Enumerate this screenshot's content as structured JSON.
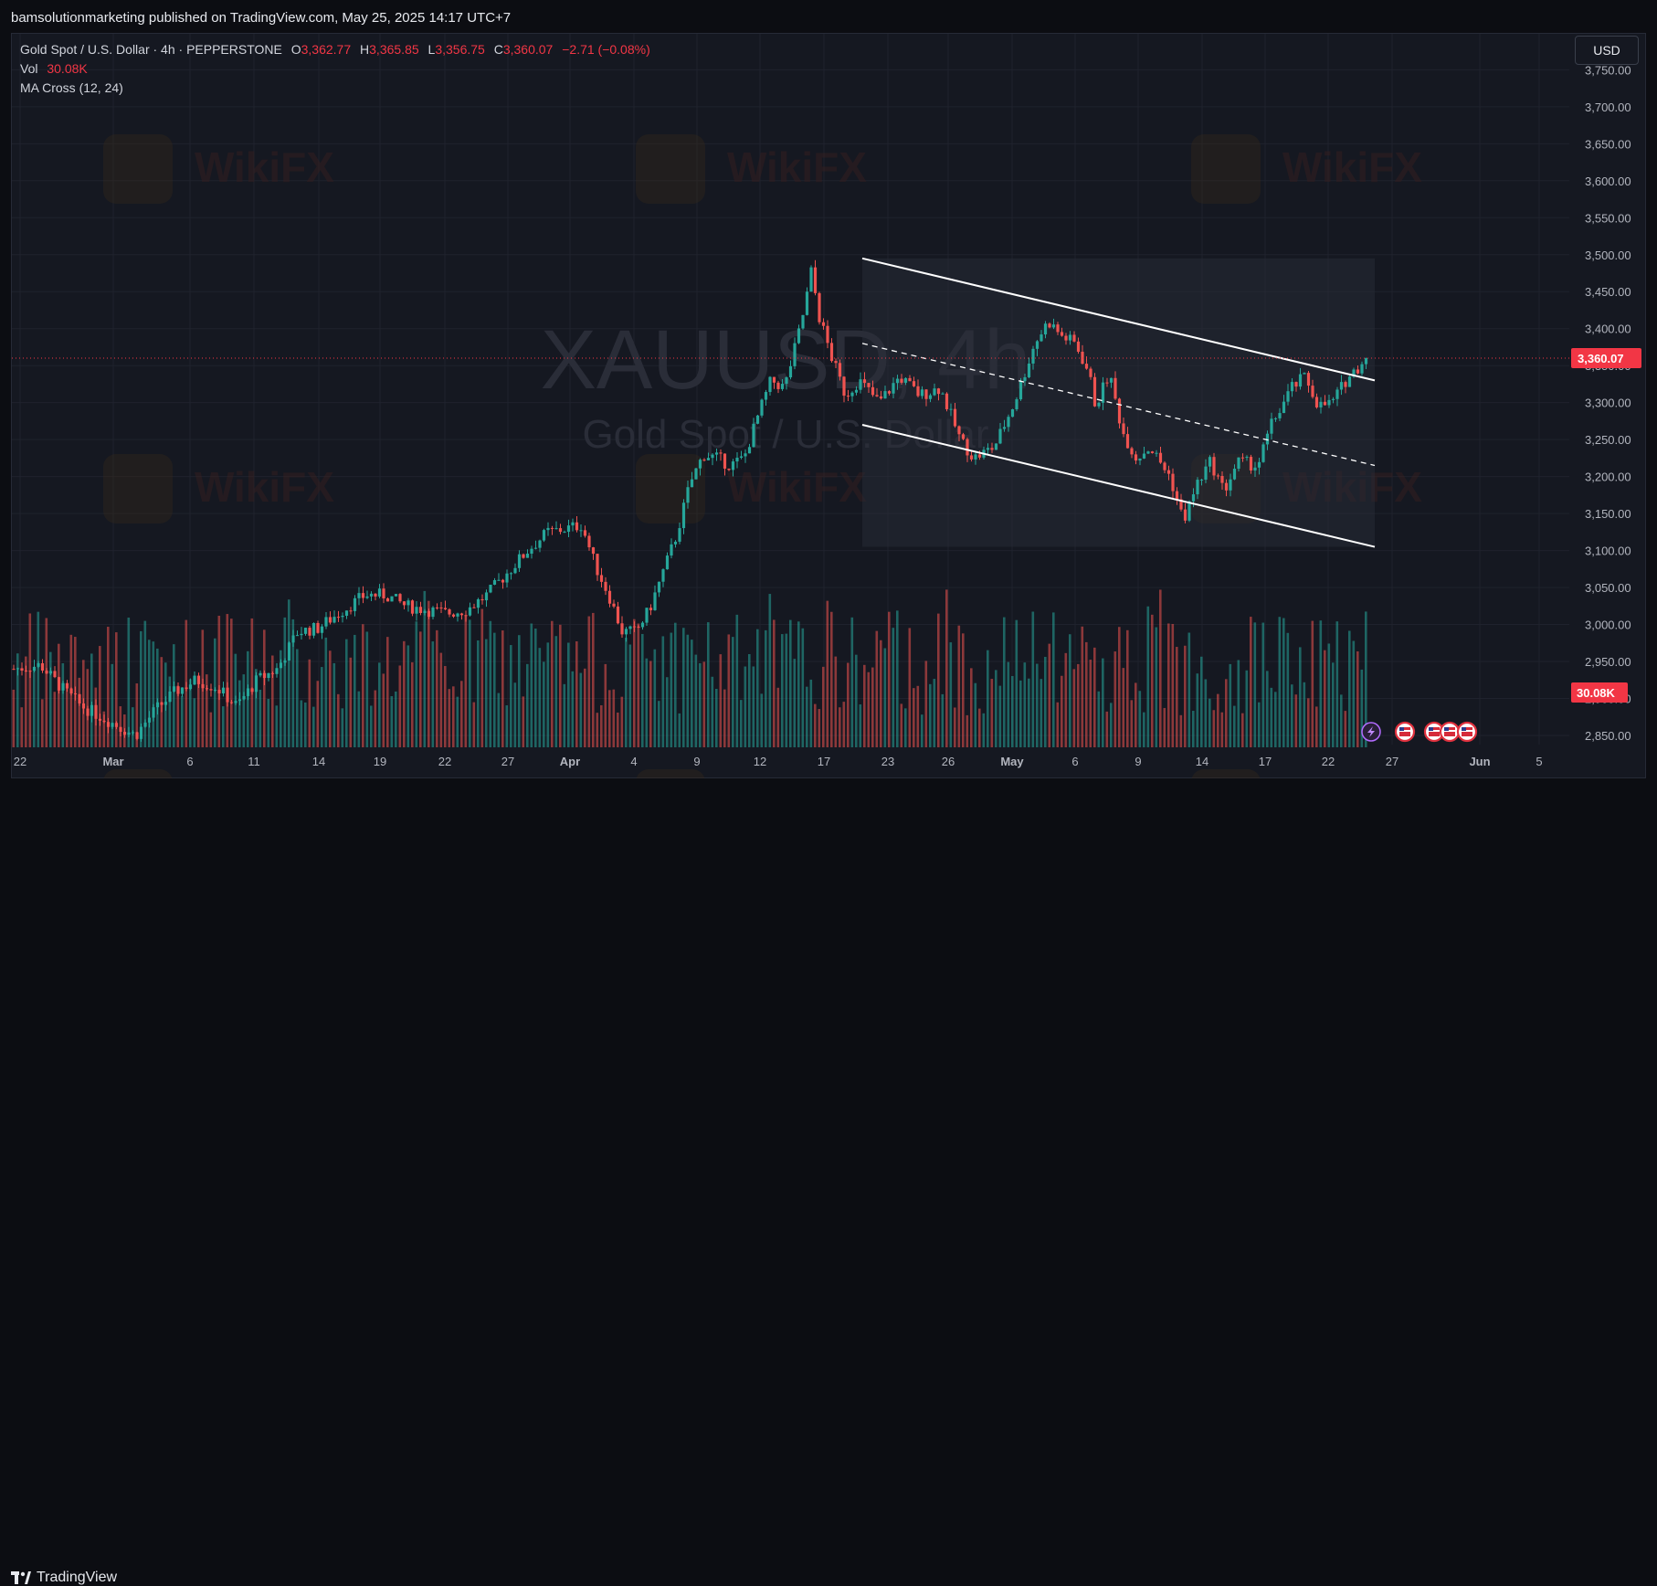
{
  "header": {
    "publisher_line": "bamsolutionmarketing published on TradingView.com, May 25, 2025 14:17 UTC+7"
  },
  "legend": {
    "symbol_line": "Gold Spot / U.S. Dollar · 4h · PEPPERSTONE",
    "o_label": "O",
    "o_value": "3,362.77",
    "h_label": "H",
    "h_value": "3,365.85",
    "l_label": "L",
    "l_value": "3,356.75",
    "c_label": "C",
    "c_value": "3,360.07",
    "change": "−2.71 (−0.08%)",
    "vol_label": "Vol",
    "vol_value": "30.08K",
    "indicator": "MA Cross (12, 24)"
  },
  "currency_button": "USD",
  "watermark": {
    "ticker": "XAUUSD, 4h",
    "name": "Gold Spot / U.S. Dollar"
  },
  "footer": {
    "brand": "TradingView"
  },
  "colors": {
    "up": "#26a69a",
    "down": "#ef5350",
    "last_price": "#f23645",
    "background": "#151821"
  },
  "chart_data": {
    "type": "candlestick",
    "symbol": "XAUUSD",
    "timeframe": "4h",
    "exchange": "PEPPERSTONE",
    "ylim": [
      2825,
      3760
    ],
    "y_ticks": [
      "2,850.00",
      "2,900.00",
      "2,950.00",
      "3,000.00",
      "3,050.00",
      "3,100.00",
      "3,150.00",
      "3,200.00",
      "3,250.00",
      "3,300.00",
      "3,350.00",
      "3,400.00",
      "3,450.00",
      "3,500.00",
      "3,550.00",
      "3,600.00",
      "3,650.00",
      "3,700.00",
      "3,750.00"
    ],
    "y_tick_values": [
      2850,
      2900,
      2950,
      3000,
      3050,
      3100,
      3150,
      3200,
      3250,
      3300,
      3350,
      3400,
      3450,
      3500,
      3550,
      3600,
      3650,
      3700,
      3750
    ],
    "x_ticks": [
      {
        "label": "22",
        "bold": false
      },
      {
        "label": "Mar",
        "bold": true
      },
      {
        "label": "6",
        "bold": false
      },
      {
        "label": "11",
        "bold": false
      },
      {
        "label": "14",
        "bold": false
      },
      {
        "label": "19",
        "bold": false
      },
      {
        "label": "22",
        "bold": false
      },
      {
        "label": "27",
        "bold": false
      },
      {
        "label": "Apr",
        "bold": true
      },
      {
        "label": "4",
        "bold": false
      },
      {
        "label": "9",
        "bold": false
      },
      {
        "label": "12",
        "bold": false
      },
      {
        "label": "17",
        "bold": false
      },
      {
        "label": "23",
        "bold": false
      },
      {
        "label": "26",
        "bold": false
      },
      {
        "label": "May",
        "bold": true
      },
      {
        "label": "6",
        "bold": false
      },
      {
        "label": "9",
        "bold": false
      },
      {
        "label": "14",
        "bold": false
      },
      {
        "label": "17",
        "bold": false
      },
      {
        "label": "22",
        "bold": false
      },
      {
        "label": "27",
        "bold": false
      },
      {
        "label": "Jun",
        "bold": true
      },
      {
        "label": "5",
        "bold": false
      }
    ],
    "last_price": 3360.07,
    "last_price_label": "3,360.07",
    "last_volume_label": "30.08K",
    "price_path": [
      {
        "p": 0,
        "v": 2940
      },
      {
        "p": 0.02,
        "v": 2945
      },
      {
        "p": 0.035,
        "v": 2915
      },
      {
        "p": 0.05,
        "v": 2890
      },
      {
        "p": 0.07,
        "v": 2870
      },
      {
        "p": 0.09,
        "v": 2850
      },
      {
        "p": 0.105,
        "v": 2885
      },
      {
        "p": 0.12,
        "v": 2910
      },
      {
        "p": 0.135,
        "v": 2925
      },
      {
        "p": 0.15,
        "v": 2915
      },
      {
        "p": 0.165,
        "v": 2890
      },
      {
        "p": 0.18,
        "v": 2925
      },
      {
        "p": 0.195,
        "v": 2940
      },
      {
        "p": 0.21,
        "v": 2990
      },
      {
        "p": 0.225,
        "v": 2995
      },
      {
        "p": 0.24,
        "v": 3015
      },
      {
        "p": 0.26,
        "v": 3040
      },
      {
        "p": 0.275,
        "v": 3040
      },
      {
        "p": 0.29,
        "v": 3025
      },
      {
        "p": 0.305,
        "v": 3020
      },
      {
        "p": 0.32,
        "v": 3015
      },
      {
        "p": 0.335,
        "v": 3020
      },
      {
        "p": 0.35,
        "v": 3040
      },
      {
        "p": 0.365,
        "v": 3070
      },
      {
        "p": 0.38,
        "v": 3100
      },
      {
        "p": 0.395,
        "v": 3125
      },
      {
        "p": 0.41,
        "v": 3130
      },
      {
        "p": 0.42,
        "v": 3135
      },
      {
        "p": 0.43,
        "v": 3080
      },
      {
        "p": 0.44,
        "v": 3040
      },
      {
        "p": 0.45,
        "v": 2990
      },
      {
        "p": 0.46,
        "v": 2990
      },
      {
        "p": 0.47,
        "v": 3020
      },
      {
        "p": 0.48,
        "v": 3070
      },
      {
        "p": 0.49,
        "v": 3120
      },
      {
        "p": 0.5,
        "v": 3190
      },
      {
        "p": 0.51,
        "v": 3230
      },
      {
        "p": 0.52,
        "v": 3225
      },
      {
        "p": 0.53,
        "v": 3215
      },
      {
        "p": 0.54,
        "v": 3225
      },
      {
        "p": 0.55,
        "v": 3280
      },
      {
        "p": 0.56,
        "v": 3330
      },
      {
        "p": 0.57,
        "v": 3320
      },
      {
        "p": 0.58,
        "v": 3390
      },
      {
        "p": 0.585,
        "v": 3430
      },
      {
        "p": 0.59,
        "v": 3480
      },
      {
        "p": 0.595,
        "v": 3420
      },
      {
        "p": 0.605,
        "v": 3360
      },
      {
        "p": 0.615,
        "v": 3310
      },
      {
        "p": 0.625,
        "v": 3330
      },
      {
        "p": 0.64,
        "v": 3300
      },
      {
        "p": 0.655,
        "v": 3335
      },
      {
        "p": 0.67,
        "v": 3310
      },
      {
        "p": 0.685,
        "v": 3320
      },
      {
        "p": 0.7,
        "v": 3250
      },
      {
        "p": 0.71,
        "v": 3225
      },
      {
        "p": 0.725,
        "v": 3240
      },
      {
        "p": 0.74,
        "v": 3300
      },
      {
        "p": 0.755,
        "v": 3380
      },
      {
        "p": 0.765,
        "v": 3410
      },
      {
        "p": 0.775,
        "v": 3390
      },
      {
        "p": 0.785,
        "v": 3380
      },
      {
        "p": 0.795,
        "v": 3340
      },
      {
        "p": 0.8,
        "v": 3295
      },
      {
        "p": 0.81,
        "v": 3340
      },
      {
        "p": 0.82,
        "v": 3260
      },
      {
        "p": 0.83,
        "v": 3225
      },
      {
        "p": 0.84,
        "v": 3240
      },
      {
        "p": 0.855,
        "v": 3200
      },
      {
        "p": 0.865,
        "v": 3140
      },
      {
        "p": 0.875,
        "v": 3190
      },
      {
        "p": 0.885,
        "v": 3220
      },
      {
        "p": 0.895,
        "v": 3180
      },
      {
        "p": 0.905,
        "v": 3220
      },
      {
        "p": 0.92,
        "v": 3215
      },
      {
        "p": 0.93,
        "v": 3270
      },
      {
        "p": 0.945,
        "v": 3320
      },
      {
        "p": 0.955,
        "v": 3335
      },
      {
        "p": 0.965,
        "v": 3295
      },
      {
        "p": 0.975,
        "v": 3300
      },
      {
        "p": 0.985,
        "v": 3330
      },
      {
        "p": 1,
        "v": 3360
      }
    ],
    "channel": {
      "upper": [
        {
          "date_tick": "21 Apr",
          "price": 3495
        },
        {
          "date_tick": "24 May",
          "price": 3330
        }
      ],
      "lower": [
        {
          "date_tick": "21 Apr",
          "price": 3270
        },
        {
          "date_tick": "24 May",
          "price": 3105
        }
      ],
      "mid_dashed": [
        {
          "date_tick": "21 Apr",
          "price": 3380
        },
        {
          "date_tick": "24 May",
          "price": 3215
        }
      ]
    },
    "volume": {
      "last": "30.08K"
    },
    "events": [
      {
        "type": "lightning"
      },
      {
        "type": "us-flag"
      },
      {
        "type": "us-flag"
      },
      {
        "type": "us-flag"
      },
      {
        "type": "us-flag"
      }
    ]
  }
}
